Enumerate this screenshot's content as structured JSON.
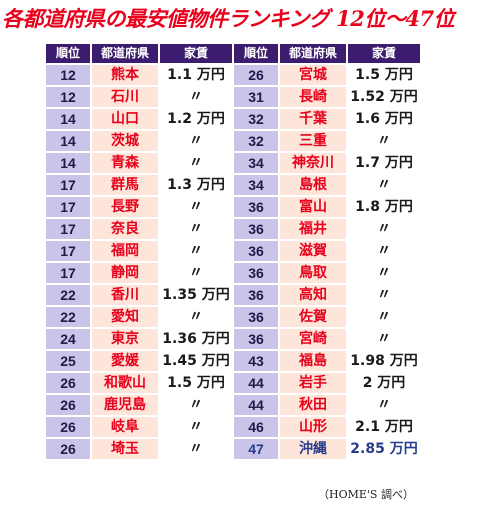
{
  "title": "各都道府県の最安値物件ランキング 12位〜47位",
  "headers": {
    "rank": "順位",
    "pref": "都道府県",
    "rent": "家賃"
  },
  "left": [
    {
      "rank": "12",
      "pref": "熊本",
      "rent": "1.1 万円"
    },
    {
      "rank": "12",
      "pref": "石川",
      "rent": "〃"
    },
    {
      "rank": "14",
      "pref": "山口",
      "rent": "1.2 万円"
    },
    {
      "rank": "14",
      "pref": "茨城",
      "rent": "〃"
    },
    {
      "rank": "14",
      "pref": "青森",
      "rent": "〃"
    },
    {
      "rank": "17",
      "pref": "群馬",
      "rent": "1.3 万円"
    },
    {
      "rank": "17",
      "pref": "長野",
      "rent": "〃"
    },
    {
      "rank": "17",
      "pref": "奈良",
      "rent": "〃"
    },
    {
      "rank": "17",
      "pref": "福岡",
      "rent": "〃"
    },
    {
      "rank": "17",
      "pref": "静岡",
      "rent": "〃"
    },
    {
      "rank": "22",
      "pref": "香川",
      "rent": "1.35 万円"
    },
    {
      "rank": "22",
      "pref": "愛知",
      "rent": "〃"
    },
    {
      "rank": "24",
      "pref": "東京",
      "rent": "1.36 万円"
    },
    {
      "rank": "25",
      "pref": "愛媛",
      "rent": "1.45 万円"
    },
    {
      "rank": "26",
      "pref": "和歌山",
      "rent": "1.5 万円"
    },
    {
      "rank": "26",
      "pref": "鹿児島",
      "rent": "〃"
    },
    {
      "rank": "26",
      "pref": "岐阜",
      "rent": "〃"
    },
    {
      "rank": "26",
      "pref": "埼玉",
      "rent": "〃"
    }
  ],
  "right": [
    {
      "rank": "26",
      "pref": "宮城",
      "rent": "1.5 万円"
    },
    {
      "rank": "31",
      "pref": "長崎",
      "rent": "1.52 万円"
    },
    {
      "rank": "32",
      "pref": "千葉",
      "rent": "1.6 万円"
    },
    {
      "rank": "32",
      "pref": "三重",
      "rent": "〃"
    },
    {
      "rank": "34",
      "pref": "神奈川",
      "rent": "1.7 万円"
    },
    {
      "rank": "34",
      "pref": "島根",
      "rent": "〃"
    },
    {
      "rank": "36",
      "pref": "富山",
      "rent": "1.8 万円"
    },
    {
      "rank": "36",
      "pref": "福井",
      "rent": "〃"
    },
    {
      "rank": "36",
      "pref": "滋賀",
      "rent": "〃"
    },
    {
      "rank": "36",
      "pref": "鳥取",
      "rent": "〃"
    },
    {
      "rank": "36",
      "pref": "高知",
      "rent": "〃"
    },
    {
      "rank": "36",
      "pref": "佐賀",
      "rent": "〃"
    },
    {
      "rank": "36",
      "pref": "宮崎",
      "rent": "〃"
    },
    {
      "rank": "43",
      "pref": "福島",
      "rent": "1.98 万円"
    },
    {
      "rank": "44",
      "pref": "岩手",
      "rent": "2 万円"
    },
    {
      "rank": "44",
      "pref": "秋田",
      "rent": "〃"
    },
    {
      "rank": "46",
      "pref": "山形",
      "rent": "2.1 万円"
    },
    {
      "rank": "47",
      "pref": "沖縄",
      "rent": "2.85 万円",
      "special": true
    }
  ],
  "source": "（HOME'S 調べ）",
  "colors": {
    "title": "#e8001c",
    "header_bg": "#3c1c6e",
    "rank_bg": "#c9c4e8",
    "pref_bg": "#fde5d9",
    "pref_text": "#e8001c",
    "special_text": "#283c8c"
  }
}
